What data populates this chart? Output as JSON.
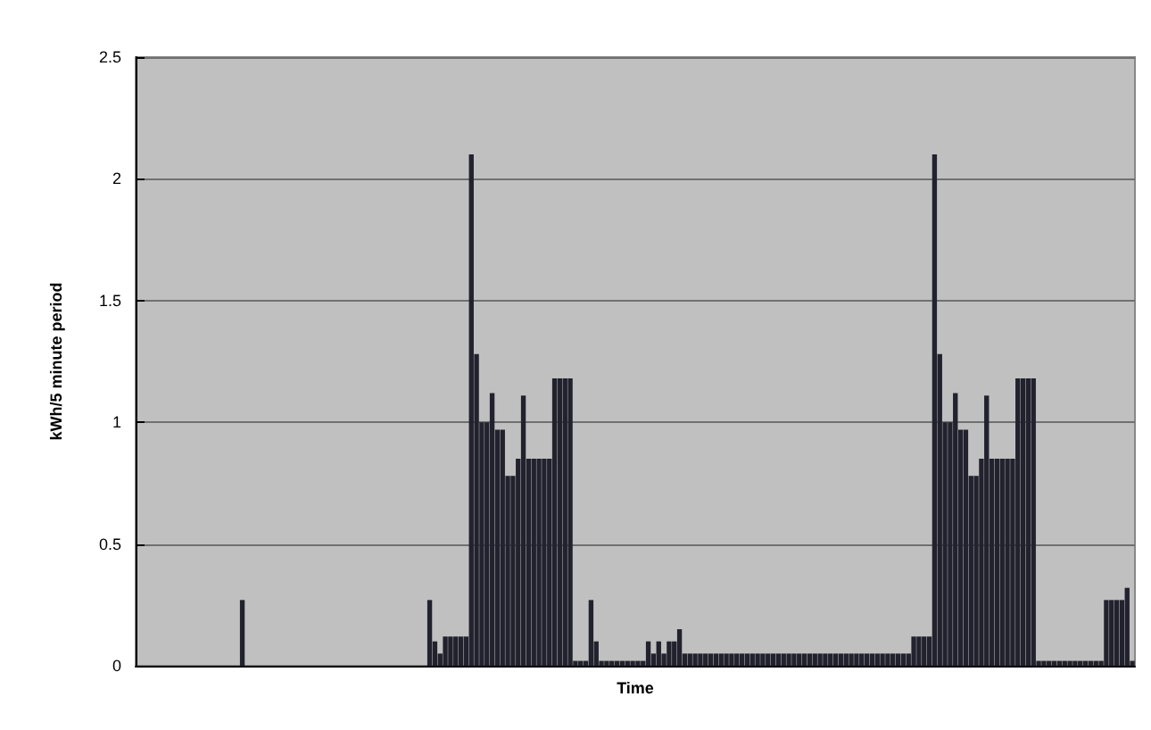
{
  "chart_data": {
    "type": "bar",
    "xlabel": "Time",
    "ylabel": "kWh/5 minute period",
    "categories": [
      null,
      null,
      null,
      null,
      null,
      null,
      null,
      null,
      null,
      null,
      null,
      null,
      null,
      null,
      null,
      null,
      null,
      null,
      null,
      null,
      null,
      null,
      null,
      null,
      null,
      null,
      null,
      null,
      null,
      null,
      null,
      null,
      null,
      null,
      null,
      null,
      null,
      null,
      null,
      null,
      null,
      null,
      null,
      null,
      null,
      null,
      null,
      null,
      null,
      null,
      null,
      null,
      null,
      null,
      null,
      null,
      null,
      null,
      null,
      null,
      null,
      null,
      null,
      null,
      null,
      null,
      null,
      null,
      null,
      null,
      null,
      null,
      null,
      null,
      null,
      null,
      null,
      null,
      null,
      null,
      null,
      null,
      null,
      null,
      null,
      null,
      null,
      null,
      null,
      null,
      null,
      null,
      null,
      null,
      null,
      null,
      null,
      null,
      null,
      null,
      null,
      null,
      null,
      null,
      null,
      null,
      null,
      null,
      null,
      null,
      null,
      null,
      null,
      null,
      null,
      null,
      null,
      null,
      null,
      null,
      null,
      null,
      null,
      null,
      null,
      null,
      null,
      null,
      null,
      null,
      null,
      null,
      null,
      null,
      null,
      null,
      null,
      null,
      null,
      null,
      null,
      null,
      null,
      null,
      null,
      null,
      null,
      null,
      null,
      null,
      null,
      null,
      null,
      null,
      null,
      null,
      null,
      null,
      null,
      null,
      null,
      null,
      null,
      null,
      null,
      null,
      null,
      null,
      null,
      null,
      null,
      null,
      null,
      null,
      null,
      null,
      null,
      null,
      null,
      null,
      null,
      null,
      null,
      null,
      null,
      null,
      null,
      null,
      null,
      null,
      null,
      null
    ],
    "values": [
      0,
      0,
      0,
      0,
      0,
      0,
      0,
      0,
      0,
      0,
      0,
      0,
      0,
      0,
      0,
      0,
      0,
      0,
      0,
      0,
      0.27,
      0,
      0,
      0,
      0,
      0,
      0,
      0,
      0,
      0,
      0,
      0,
      0,
      0,
      0,
      0,
      0,
      0,
      0,
      0,
      0,
      0,
      0,
      0,
      0,
      0,
      0,
      0,
      0,
      0,
      0,
      0,
      0,
      0,
      0,
      0,
      0.27,
      0.1,
      0.05,
      0.12,
      0.12,
      0.12,
      0.12,
      0.12,
      2.1,
      1.28,
      1,
      1,
      1.12,
      0.97,
      0.97,
      0.78,
      0.78,
      0.85,
      1.11,
      0.85,
      0.85,
      0.85,
      0.85,
      0.85,
      1.18,
      1.18,
      1.18,
      1.18,
      0.02,
      0.02,
      0.02,
      0.27,
      0.1,
      0.02,
      0.02,
      0.02,
      0.02,
      0.02,
      0.02,
      0.02,
      0.02,
      0.02,
      0.1,
      0.05,
      0.1,
      0.05,
      0.1,
      0.1,
      0.15,
      0.05,
      0.05,
      0.05,
      0.05,
      0.05,
      0.05,
      0.05,
      0.05,
      0.05,
      0.05,
      0.05,
      0.05,
      0.05,
      0.05,
      0.05,
      0.05,
      0.05,
      0.05,
      0.05,
      0.05,
      0.05,
      0.05,
      0.05,
      0.05,
      0.05,
      0.05,
      0.05,
      0.05,
      0.05,
      0.05,
      0.05,
      0.05,
      0.05,
      0.05,
      0.05,
      0.05,
      0.05,
      0.05,
      0.05,
      0.05,
      0.05,
      0.05,
      0.05,
      0.05,
      0.12,
      0.12,
      0.12,
      0.12,
      2.1,
      1.28,
      1,
      1,
      1.12,
      0.97,
      0.97,
      0.78,
      0.78,
      0.85,
      1.11,
      0.85,
      0.85,
      0.85,
      0.85,
      0.85,
      1.18,
      1.18,
      1.18,
      1.18,
      0.02,
      0.02,
      0.02,
      0.02,
      0.02,
      0.02,
      0.02,
      0.02,
      0.02,
      0.02,
      0.02,
      0.02,
      0.02,
      0.27,
      0.27,
      0.27,
      0.27,
      0.32,
      0.02
    ],
    "color": "#22222e",
    "ylim": [
      0,
      2.5
    ],
    "yticks": [
      0,
      0.5,
      1,
      1.5,
      2,
      2.5
    ],
    "grid": "y",
    "tick_labels": "y"
  }
}
